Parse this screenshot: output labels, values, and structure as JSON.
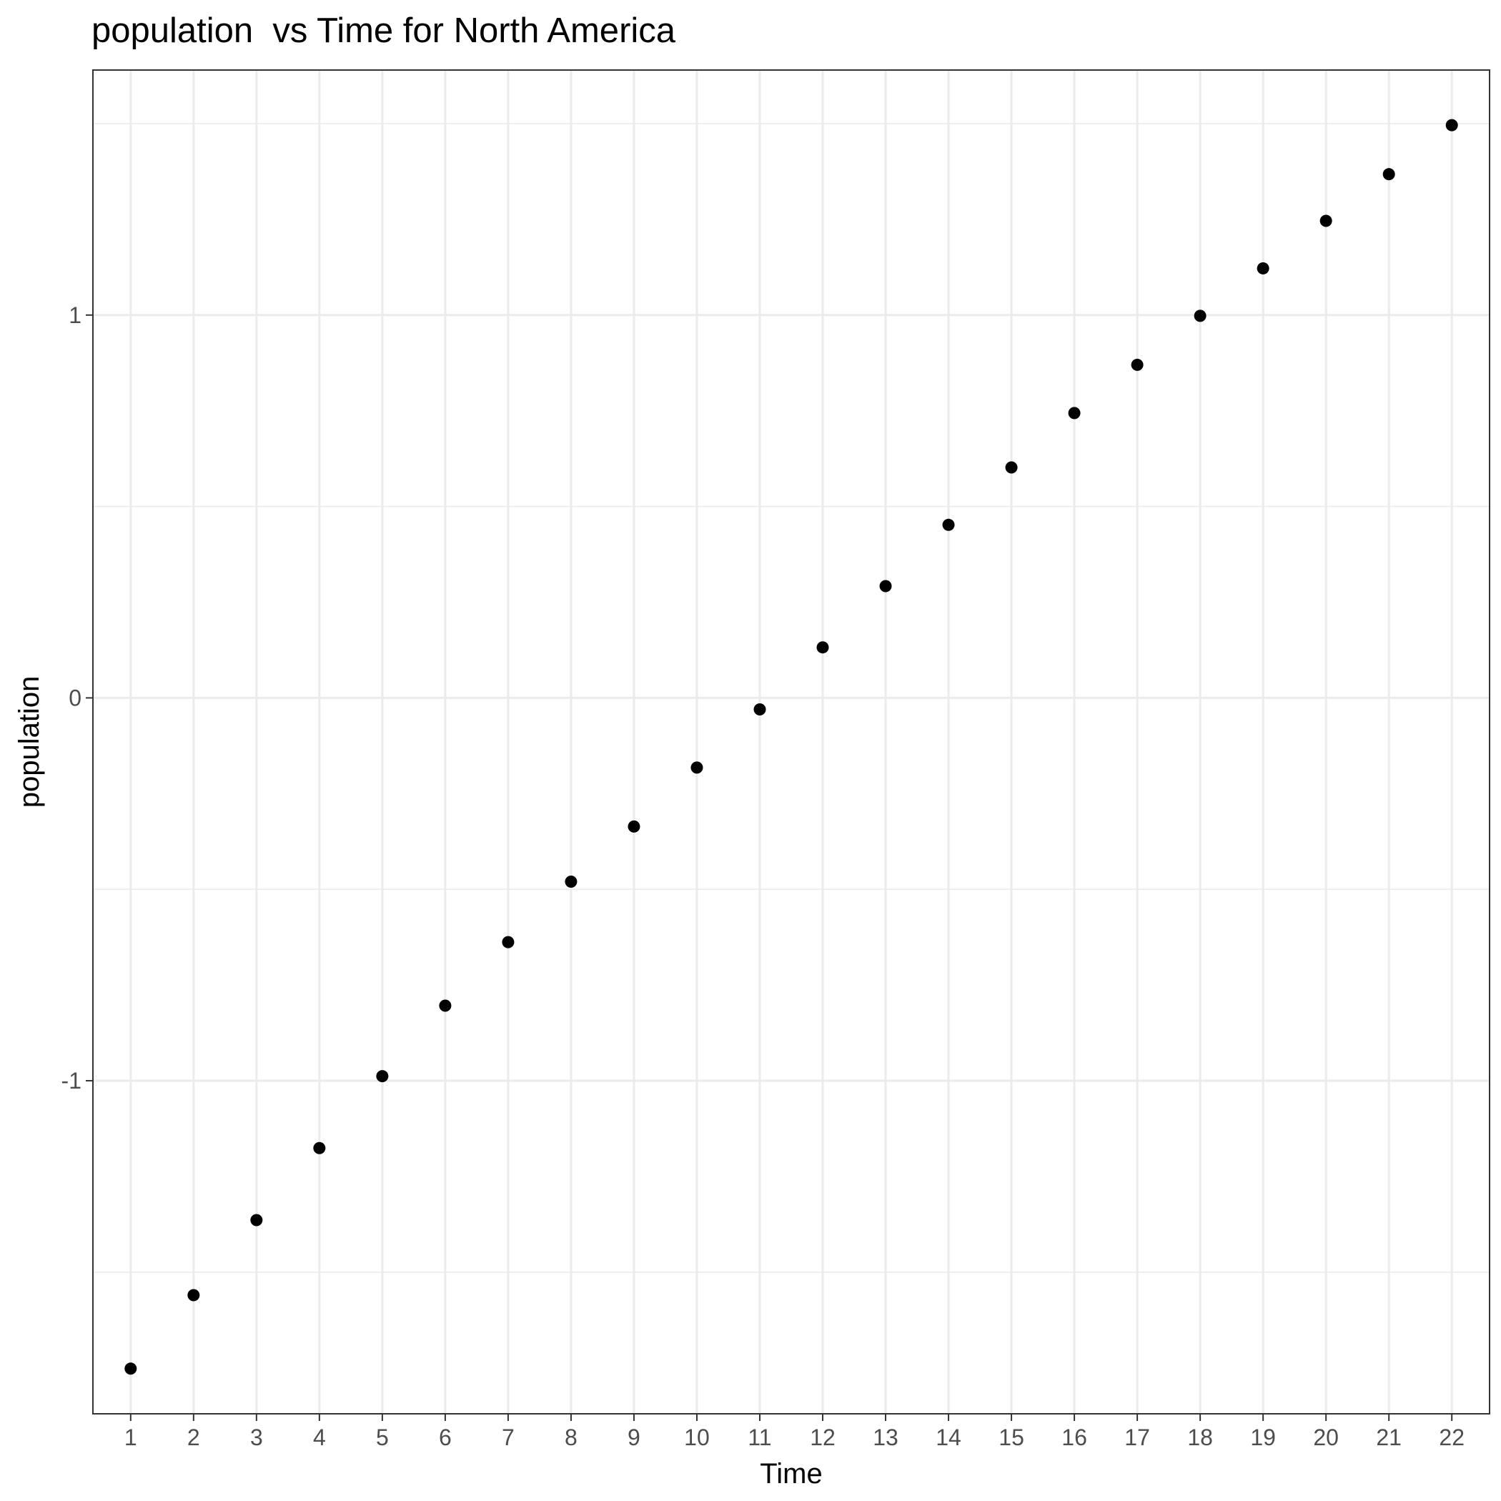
{
  "chart_data": {
    "type": "scatter",
    "title": "population  vs Time for North America",
    "xlabel": "Time",
    "ylabel": "population",
    "x": [
      1,
      2,
      3,
      4,
      5,
      6,
      7,
      8,
      9,
      10,
      11,
      12,
      13,
      14,
      15,
      16,
      17,
      18,
      19,
      20,
      21,
      22
    ],
    "y": [
      -1.752,
      -1.56,
      -1.364,
      -1.176,
      -0.988,
      -0.804,
      -0.638,
      -0.48,
      -0.336,
      -0.182,
      -0.03,
      0.132,
      0.292,
      0.452,
      0.602,
      0.744,
      0.87,
      0.998,
      1.122,
      1.246,
      1.368,
      1.496
    ],
    "x_ticks": [
      "1",
      "2",
      "3",
      "4",
      "5",
      "6",
      "7",
      "8",
      "9",
      "10",
      "11",
      "12",
      "13",
      "14",
      "15",
      "16",
      "17",
      "18",
      "19",
      "20",
      "21",
      "22"
    ],
    "y_ticks": [
      -1,
      0,
      1
    ],
    "y_tick_labels": [
      "-1",
      "0",
      "1"
    ],
    "xlim": [
      0.4,
      22.6
    ],
    "ylim": [
      -1.87,
      1.64
    ],
    "grid": true,
    "legend": "none",
    "point_color": "#000000",
    "grid_color": "#ebebeb",
    "panel_border_color": "#333333"
  }
}
